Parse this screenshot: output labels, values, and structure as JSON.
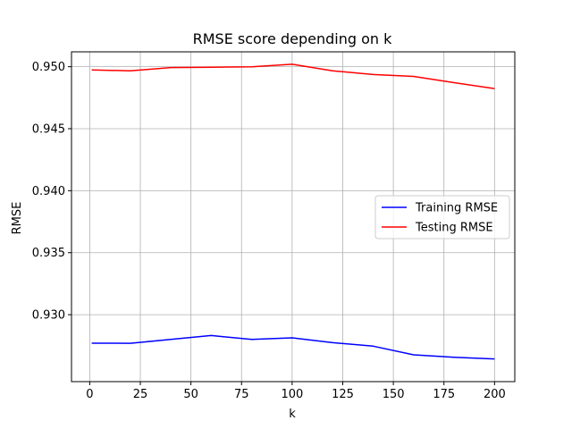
{
  "chart_data": {
    "type": "line",
    "title": "RMSE score depending on k",
    "xlabel": "k",
    "ylabel": "RMSE",
    "xlim": [
      -9,
      210
    ],
    "ylim": [
      0.9246,
      0.9512
    ],
    "xticks": [
      0,
      25,
      50,
      75,
      100,
      125,
      150,
      175,
      200
    ],
    "xtick_labels": [
      "0",
      "25",
      "50",
      "75",
      "100",
      "125",
      "150",
      "175",
      "200"
    ],
    "yticks": [
      0.93,
      0.935,
      0.94,
      0.945,
      0.95
    ],
    "ytick_labels": [
      "0.930",
      "0.935",
      "0.940",
      "0.945",
      "0.950"
    ],
    "grid": true,
    "legend_position": "center-right",
    "x": [
      1,
      20,
      40,
      60,
      80,
      100,
      120,
      140,
      160,
      180,
      200
    ],
    "series": [
      {
        "name": "Training RMSE",
        "color": "#0000ff",
        "values": [
          0.9277,
          0.92769,
          0.928,
          0.92832,
          0.928,
          0.92813,
          0.92774,
          0.92746,
          0.92676,
          0.92657,
          0.92643
        ]
      },
      {
        "name": "Testing RMSE",
        "color": "#ff0000",
        "values": [
          0.94974,
          0.94967,
          0.94993,
          0.94996,
          0.94999,
          0.9502,
          0.94967,
          0.94937,
          0.94922,
          0.94871,
          0.94824
        ]
      }
    ]
  }
}
